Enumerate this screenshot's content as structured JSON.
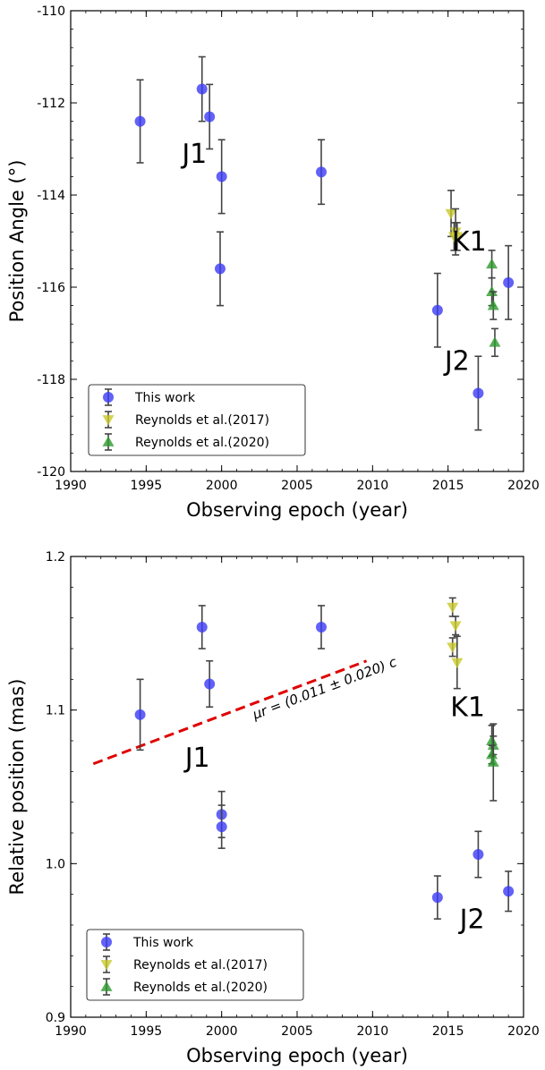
{
  "chart_data": [
    {
      "type": "scatter",
      "xlabel": "Observing epoch (year)",
      "ylabel": "Position Angle (°)",
      "xlim": [
        1990,
        2020
      ],
      "ylim": [
        -120,
        -110
      ],
      "xticks": [
        1990,
        1995,
        2000,
        2005,
        2010,
        2015,
        2020
      ],
      "yticks": [
        -120,
        -118,
        -116,
        -114,
        -112,
        -110
      ],
      "ytick_labels": [
        "-120",
        "-118",
        "-116",
        "-114",
        "-112",
        "-110"
      ],
      "grid": false,
      "legend_position": "lower-left",
      "series": [
        {
          "name": "This work",
          "marker": "circle",
          "color": "#3b3bf5",
          "x": [
            1994.6,
            1998.7,
            1999.2,
            2000.0,
            1999.9,
            2006.6,
            2014.3,
            2017.0,
            2019.0
          ],
          "y": [
            -112.4,
            -111.7,
            -112.3,
            -113.6,
            -115.6,
            -113.5,
            -116.5,
            -118.3,
            -115.9
          ],
          "err": [
            0.9,
            0.7,
            0.7,
            0.8,
            0.8,
            0.7,
            0.8,
            0.8,
            0.8
          ]
        },
        {
          "name": "Reynolds et al.(2017)",
          "marker": "triangle-down",
          "color": "#c8c82a",
          "x": [
            2015.2,
            2015.5,
            2015.4,
            2015.6
          ],
          "y": [
            -114.4,
            -114.8,
            -114.9,
            -114.9
          ],
          "err": [
            0.5,
            0.5,
            0.3,
            0.3
          ]
        },
        {
          "name": "Reynolds et al.(2020)",
          "marker": "triangle-up",
          "color": "#2e9a2e",
          "x": [
            2017.9,
            2017.9,
            2018.0,
            2018.1
          ],
          "y": [
            -115.5,
            -116.1,
            -116.4,
            -117.2
          ],
          "err": [
            0.3,
            0.3,
            0.3,
            0.3
          ]
        }
      ],
      "annotations": [
        {
          "text": "J1",
          "x": 1998.2,
          "y": -113.3
        },
        {
          "text": "K1",
          "x": 2016.4,
          "y": -115.2
        },
        {
          "text": "J2",
          "x": 2015.6,
          "y": -117.8
        }
      ]
    },
    {
      "type": "scatter",
      "xlabel": "Observing epoch (year)",
      "ylabel": "Relative position (mas)",
      "xlim": [
        1990,
        2020
      ],
      "ylim": [
        0.9,
        1.2
      ],
      "xticks": [
        1990,
        1995,
        2000,
        2005,
        2010,
        2015,
        2020
      ],
      "yticks": [
        0.9,
        1.0,
        1.1,
        1.2
      ],
      "ytick_labels": [
        "0.9",
        "1.0",
        "1.1",
        "1.2"
      ],
      "grid": false,
      "legend_position": "lower-left",
      "series": [
        {
          "name": "This work",
          "marker": "circle",
          "color": "#3b3bf5",
          "x": [
            1994.6,
            1998.7,
            1999.2,
            2006.6,
            2000.0,
            2000.0,
            2014.3,
            2017.0,
            2019.0
          ],
          "y": [
            1.097,
            1.154,
            1.117,
            1.154,
            1.032,
            1.024,
            0.978,
            1.006,
            0.982
          ],
          "err": [
            0.023,
            0.014,
            0.015,
            0.014,
            0.015,
            0.014,
            0.014,
            0.015,
            0.013
          ]
        },
        {
          "name": "Reynolds et al.(2017)",
          "marker": "triangle-down",
          "color": "#c8c82a",
          "x": [
            2015.3,
            2015.5,
            2015.3,
            2015.6
          ],
          "y": [
            1.167,
            1.155,
            1.141,
            1.131
          ],
          "err": [
            0.006,
            0.006,
            0.006,
            0.017
          ]
        },
        {
          "name": "Reynolds et al.(2020)",
          "marker": "triangle-up",
          "color": "#2e9a2e",
          "x": [
            2017.9,
            2018.0,
            2017.9,
            2018.0
          ],
          "y": [
            1.08,
            1.077,
            1.071,
            1.066
          ],
          "err": [
            0.01,
            0.006,
            0.006,
            0.025
          ]
        }
      ],
      "fit_line": {
        "color": "#e00000",
        "x": [
          1991.5,
          2009.6
        ],
        "y": [
          1.065,
          1.132
        ],
        "label": "μr = (0.011 ± 0.020) c"
      },
      "annotations": [
        {
          "text": "K1",
          "x": 2016.3,
          "y": 1.096
        },
        {
          "text": "J1",
          "x": 1998.4,
          "y": 1.063
        },
        {
          "text": "J2",
          "x": 2016.6,
          "y": 0.958
        }
      ]
    }
  ]
}
